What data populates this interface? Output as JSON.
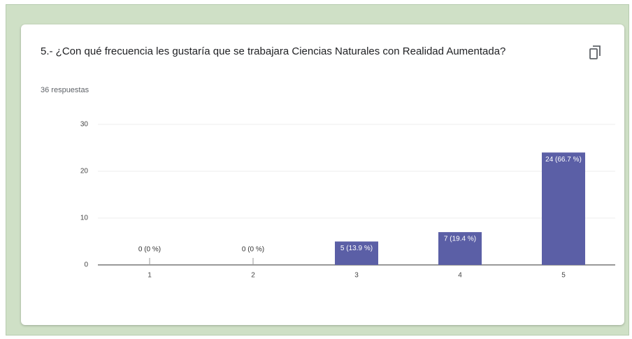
{
  "chart_data": {
    "type": "bar",
    "title": "5.- ¿Con qué frecuencia les gustaría que se trabajara Ciencias Naturales con Realidad Aumentada?",
    "subtitle": "36 respuestas",
    "categories": [
      "1",
      "2",
      "3",
      "4",
      "5"
    ],
    "values": [
      0,
      0,
      5,
      7,
      24
    ],
    "value_labels": [
      "0 (0 %)",
      "0 (0 %)",
      "5 (13.9 %)",
      "7 (19.4 %)",
      "24 (66.7 %)"
    ],
    "color": "#5b5fa6",
    "ylim": [
      0,
      30
    ],
    "yticks": [
      0,
      10,
      20,
      30
    ],
    "grid": true
  }
}
